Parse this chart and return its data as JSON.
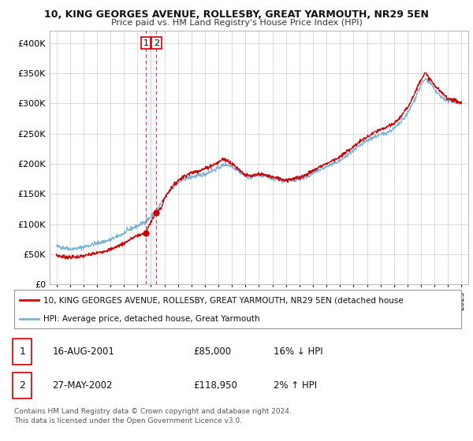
{
  "title": "10, KING GEORGES AVENUE, ROLLESBY, GREAT YARMOUTH, NR29 5EN",
  "subtitle": "Price paid vs. HM Land Registry's House Price Index (HPI)",
  "ylabel_ticks": [
    "£0",
    "£50K",
    "£100K",
    "£150K",
    "£200K",
    "£250K",
    "£300K",
    "£350K",
    "£400K"
  ],
  "ytick_values": [
    0,
    50000,
    100000,
    150000,
    200000,
    250000,
    300000,
    350000,
    400000
  ],
  "ylim": [
    0,
    420000
  ],
  "xlim_start": 1994.5,
  "xlim_end": 2025.5,
  "hpi_color": "#7ab3d4",
  "price_color": "#cc0000",
  "vline_color": "#cc4444",
  "transaction1_date": 2001.62,
  "transaction1_price": 85000,
  "transaction2_date": 2002.4,
  "transaction2_price": 118950,
  "legend_line1": "10, KING GEORGES AVENUE, ROLLESBY, GREAT YARMOUTH, NR29 5EN (detached house",
  "legend_line2": "HPI: Average price, detached house, Great Yarmouth",
  "table_row1": [
    "1",
    "16-AUG-2001",
    "£85,000",
    "16% ↓ HPI"
  ],
  "table_row2": [
    "2",
    "27-MAY-2002",
    "£118,950",
    "2% ↑ HPI"
  ],
  "footer": "Contains HM Land Registry data © Crown copyright and database right 2024.\nThis data is licensed under the Open Government Licence v3.0.",
  "bg_color": "#ffffff",
  "plot_bg_color": "#ffffff",
  "grid_color": "#cccccc"
}
